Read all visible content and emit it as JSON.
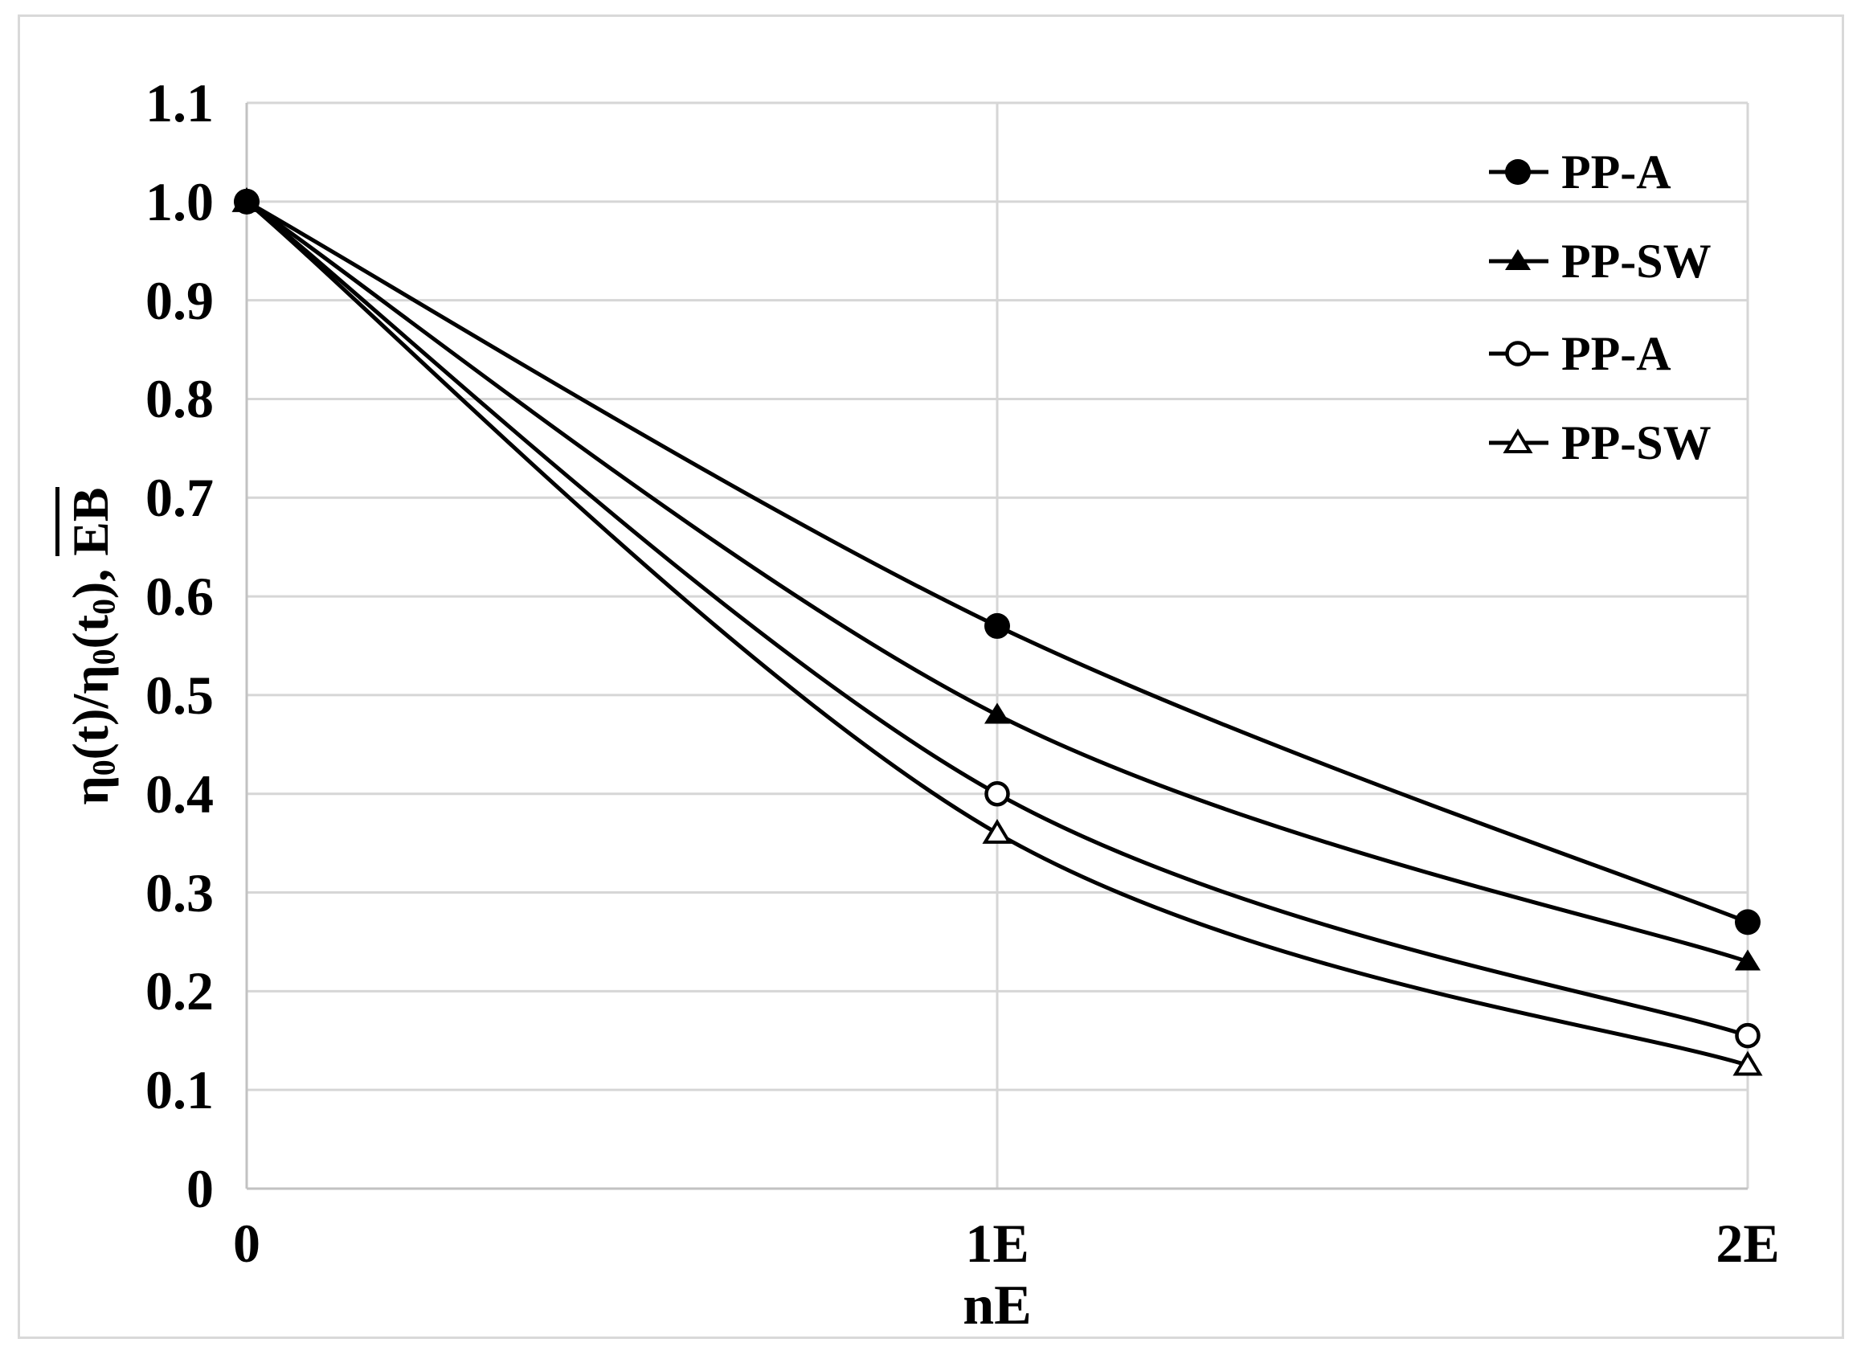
{
  "figure": {
    "background_color": "#ffffff",
    "border_color": "#d9d9d9"
  },
  "chart_data": {
    "type": "line",
    "title": "",
    "xlabel": "nE",
    "ylabel": "η0(t)/η0(t0), EB (overline on EB)",
    "ylabel_parts": [
      {
        "text": "η",
        "style": "normal"
      },
      {
        "text": "0",
        "style": "sub"
      },
      {
        "text": "(t)/η",
        "style": "normal"
      },
      {
        "text": "0",
        "style": "sub"
      },
      {
        "text": "(t",
        "style": "normal"
      },
      {
        "text": "0",
        "style": "sub"
      },
      {
        "text": "), ",
        "style": "normal"
      },
      {
        "text": "EB",
        "style": "overline"
      }
    ],
    "x_categories": [
      "0",
      "1E",
      "2E"
    ],
    "x_values": [
      0,
      1,
      2
    ],
    "ylim": [
      0,
      1.1
    ],
    "ytick_labels": [
      "1.1",
      "1.0",
      "0.9",
      "0.8",
      "0.7",
      "0.6",
      "0.5",
      "0.4",
      "0.3",
      "0.2",
      "0.1",
      "0"
    ],
    "ytick_values": [
      1.1,
      1.0,
      0.9,
      0.8,
      0.7,
      0.6,
      0.5,
      0.4,
      0.3,
      0.2,
      0.1,
      0
    ],
    "grid": true,
    "smoothed_lines": true,
    "line_color": "#000000",
    "gridline_color": "#d6d6d6",
    "axis_line_color": "#c2c2c2",
    "legend_position": "top-right",
    "series": [
      {
        "name": "PP-A",
        "marker": "filled-circle",
        "values": [
          1.0,
          0.57,
          0.27
        ]
      },
      {
        "name": "PP-SW",
        "marker": "filled-triangle",
        "values": [
          1.0,
          0.48,
          0.23
        ]
      },
      {
        "name": "PP-A",
        "marker": "open-circle",
        "values": [
          1.0,
          0.4,
          0.155
        ]
      },
      {
        "name": "PP-SW",
        "marker": "open-triangle",
        "values": [
          1.0,
          0.36,
          0.125
        ]
      }
    ]
  }
}
